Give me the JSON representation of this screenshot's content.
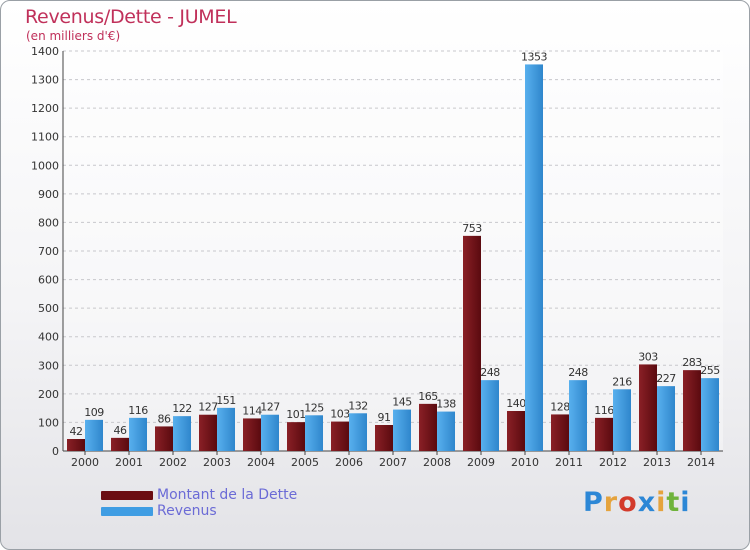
{
  "header": {
    "title": "Revenus/Dette - JUMEL",
    "subtitle": "(en milliers d'€)"
  },
  "legend": {
    "items": [
      {
        "label": "Montant de la Dette",
        "color": "#6b0d12"
      },
      {
        "label": "Revenus",
        "color": "#3f9de3"
      }
    ]
  },
  "logo": {
    "letters": [
      "P",
      "r",
      "o",
      "x",
      "i",
      "t",
      "i"
    ],
    "colors": [
      "#2c87d6",
      "#e5a33d",
      "#d33a2b",
      "#2c87d6",
      "#e5a33d",
      "#6fb33c",
      "#2c87d6"
    ]
  },
  "chart_data": {
    "type": "bar",
    "categories": [
      "2000",
      "2001",
      "2002",
      "2003",
      "2004",
      "2005",
      "2006",
      "2007",
      "2008",
      "2009",
      "2010",
      "2011",
      "2012",
      "2013",
      "2014"
    ],
    "series": [
      {
        "name": "Montant de la Dette",
        "color": "#6b0d12",
        "values": [
          42,
          46,
          86,
          127,
          114,
          101,
          103,
          91,
          165,
          753,
          140,
          128,
          116,
          303,
          283
        ]
      },
      {
        "name": "Revenus",
        "color": "#3f9de3",
        "values": [
          109,
          116,
          122,
          151,
          127,
          125,
          132,
          145,
          138,
          248,
          1353,
          248,
          216,
          227,
          255
        ]
      }
    ],
    "ylim": [
      0,
      1400
    ],
    "yticks": [
      0,
      100,
      200,
      300,
      400,
      500,
      600,
      700,
      800,
      900,
      1000,
      1100,
      1200,
      1300,
      1400
    ],
    "grid": true,
    "title": "Revenus/Dette - JUMEL",
    "ylabel": "(en milliers d'€)",
    "legend_position": "bottom-left"
  }
}
